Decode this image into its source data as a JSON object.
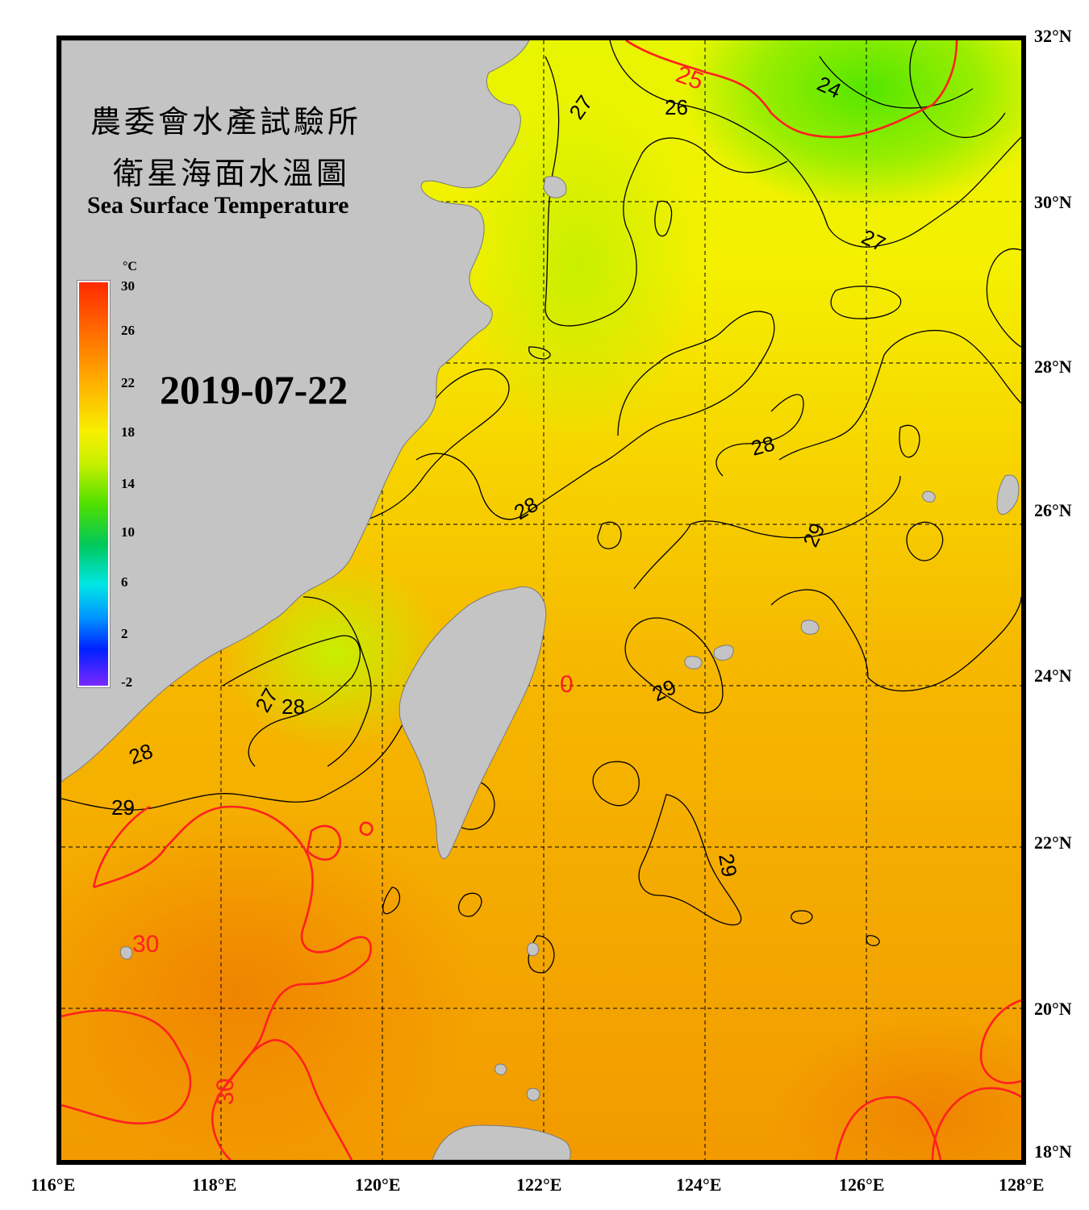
{
  "title": {
    "zh_line1": "農委會水產試驗所",
    "zh_line2": "衛星海面水溫圖",
    "en": "Sea Surface Temperature"
  },
  "date": "2019-07-22",
  "colorbar": {
    "unit": "°C",
    "ticks": [
      "30",
      "26",
      "22",
      "18",
      "14",
      "10",
      "6",
      "2",
      "-2"
    ],
    "range": [
      -2,
      30
    ],
    "colors": [
      "#ff2a00",
      "#ffb000",
      "#f7ef00",
      "#50e000",
      "#00e6e6",
      "#0020ff",
      "#7a28ff"
    ]
  },
  "axes": {
    "lat_labels": [
      "32°N",
      "30°N",
      "28°N",
      "26°N",
      "24°N",
      "22°N",
      "20°N",
      "18°N"
    ],
    "lon_labels": [
      "116°E",
      "118°E",
      "120°E",
      "122°E",
      "124°E",
      "126°E",
      "128°E"
    ],
    "lon_range": [
      116,
      128
    ],
    "lat_range": [
      18,
      32
    ]
  },
  "contour_labels": [
    {
      "text": "25",
      "hot": true
    },
    {
      "text": "24",
      "hot": false
    },
    {
      "text": "26",
      "hot": false
    },
    {
      "text": "27",
      "hot": false
    },
    {
      "text": "27",
      "hot": false
    },
    {
      "text": "28",
      "hot": false
    },
    {
      "text": "28",
      "hot": false
    },
    {
      "text": "29",
      "hot": false
    },
    {
      "text": "29",
      "hot": false
    },
    {
      "text": "29",
      "hot": false
    },
    {
      "text": "27",
      "hot": false
    },
    {
      "text": "28",
      "hot": false
    },
    {
      "text": "28",
      "hot": false
    },
    {
      "text": "29",
      "hot": false
    },
    {
      "text": "30",
      "hot": true
    },
    {
      "text": "30",
      "hot": true
    },
    {
      "text": "0",
      "hot": true
    }
  ],
  "legend_colors": {
    "land": "#c4c4c4",
    "contour": "#000000",
    "hot_contour": "#ff2020",
    "frame": "#000000"
  }
}
